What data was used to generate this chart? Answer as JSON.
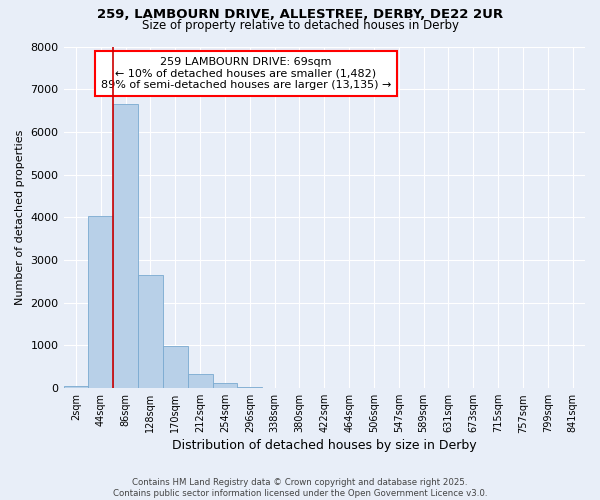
{
  "title1": "259, LAMBOURN DRIVE, ALLESTREE, DERBY, DE22 2UR",
  "title2": "Size of property relative to detached houses in Derby",
  "xlabel": "Distribution of detached houses by size in Derby",
  "ylabel": "Number of detached properties",
  "annotation_line0": "259 LAMBOURN DRIVE: 69sqm",
  "annotation_line1": "← 10% of detached houses are smaller (1,482)",
  "annotation_line2": "89% of semi-detached houses are larger (13,135) →",
  "footer1": "Contains HM Land Registry data © Crown copyright and database right 2025.",
  "footer2": "Contains public sector information licensed under the Open Government Licence v3.0.",
  "bins": [
    "2sqm",
    "44sqm",
    "86sqm",
    "128sqm",
    "170sqm",
    "212sqm",
    "254sqm",
    "296sqm",
    "338sqm",
    "380sqm",
    "422sqm",
    "464sqm",
    "506sqm",
    "547sqm",
    "589sqm",
    "631sqm",
    "673sqm",
    "715sqm",
    "757sqm",
    "799sqm",
    "841sqm"
  ],
  "values": [
    60,
    4020,
    6650,
    2650,
    990,
    340,
    110,
    35,
    10,
    3,
    1,
    0,
    0,
    0,
    0,
    0,
    0,
    0,
    0,
    0,
    0
  ],
  "bar_color": "#b8d0e8",
  "bar_edge_color": "#7aaad0",
  "red_line_x": 1.5,
  "marker_line_color": "#cc0000",
  "background_color": "#e8eef8",
  "grid_color": "#ffffff",
  "ylim": [
    0,
    8000
  ],
  "yticks": [
    0,
    1000,
    2000,
    3000,
    4000,
    5000,
    6000,
    7000,
    8000
  ]
}
